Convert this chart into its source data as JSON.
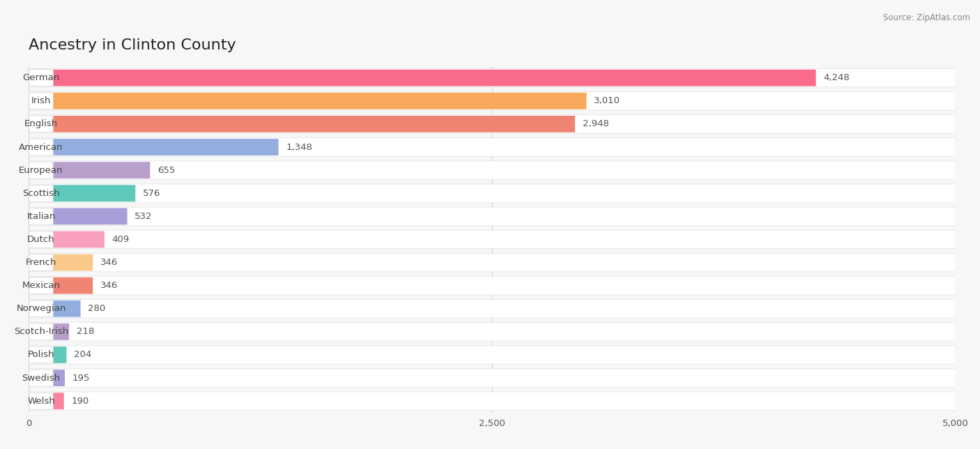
{
  "title": "Ancestry in Clinton County",
  "source": "Source: ZipAtlas.com",
  "categories": [
    "German",
    "Irish",
    "English",
    "American",
    "European",
    "Scottish",
    "Italian",
    "Dutch",
    "French",
    "Mexican",
    "Norwegian",
    "Scotch-Irish",
    "Polish",
    "Swedish",
    "Welsh"
  ],
  "values": [
    4248,
    3010,
    2948,
    1348,
    655,
    576,
    532,
    409,
    346,
    346,
    280,
    218,
    204,
    195,
    190
  ],
  "bar_colors": [
    "#F96B8A",
    "#F9A95C",
    "#F08472",
    "#91AEDE",
    "#B99FCC",
    "#5EC8BB",
    "#A89ED8",
    "#F9A0C0",
    "#F9C88A",
    "#F08472",
    "#91AEDE",
    "#B99FCC",
    "#5EC8BB",
    "#A89ED8",
    "#F9849C"
  ],
  "xlim": [
    0,
    5000
  ],
  "xticks": [
    0,
    2500,
    5000
  ],
  "background_color": "#f7f7f7",
  "row_bg_color": "#ffffff",
  "row_sep_color": "#e8e8e8",
  "title_fontsize": 16,
  "label_fontsize": 9.5,
  "value_fontsize": 9.5
}
